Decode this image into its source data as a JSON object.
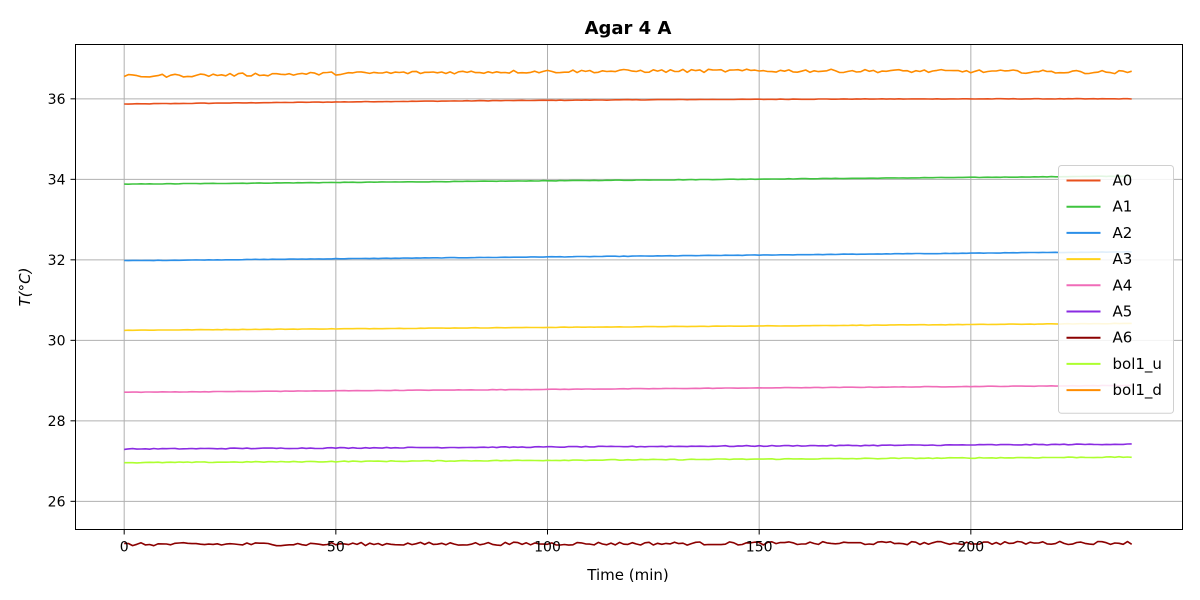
{
  "chart_data": {
    "type": "line",
    "title": "Agar 4 A",
    "xlabel": "Time (min)",
    "ylabel": "T(°C)",
    "xlim": [
      -11.5,
      250
    ],
    "ylim": [
      25.3,
      37.35
    ],
    "xticks": [
      0,
      50,
      100,
      150,
      200
    ],
    "yticks": [
      26,
      28,
      30,
      32,
      34,
      36
    ],
    "grid": true,
    "legend_position": "right",
    "x_range": [
      0,
      238
    ],
    "series": [
      {
        "name": "A0",
        "color": "#e8501c",
        "start": 35.87,
        "end": 36.0,
        "peak": 36.04,
        "noise": 0.005
      },
      {
        "name": "A1",
        "color": "#3fc43f",
        "start": 33.88,
        "end": 34.08,
        "noise": 0.005
      },
      {
        "name": "A2",
        "color": "#2b8fe8",
        "start": 31.98,
        "end": 32.2,
        "noise": 0.005
      },
      {
        "name": "A3",
        "color": "#ffd21a",
        "start": 30.25,
        "end": 30.42,
        "noise": 0.005
      },
      {
        "name": "A4",
        "color": "#f06cb8",
        "start": 28.71,
        "end": 28.88,
        "noise": 0.005
      },
      {
        "name": "A5",
        "color": "#8a2be2",
        "start": 27.3,
        "end": 27.42,
        "noise": 0.01
      },
      {
        "name": "A6",
        "color": "#8b0000",
        "start": 24.93,
        "end": 24.97,
        "noise": 0.04
      },
      {
        "name": "bol1_u",
        "color": "#adff2f",
        "start": 26.96,
        "end": 27.1,
        "noise": 0.01
      },
      {
        "name": "bol1_d",
        "color": "#ff8c00",
        "start": 36.56,
        "end": 36.66,
        "peak": 36.74,
        "noise": 0.04
      }
    ]
  }
}
